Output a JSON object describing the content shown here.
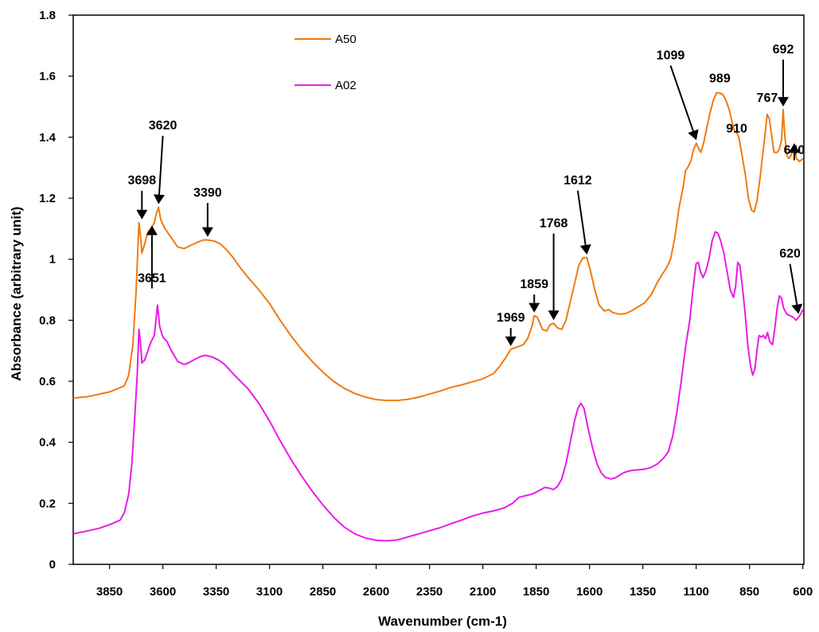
{
  "chart_data": {
    "type": "line",
    "xlabel": "Wavenumber (cm-1)",
    "ylabel": "Absorbance (arbitrary unit)",
    "xlim": [
      4020,
      595
    ],
    "ylim": [
      0,
      1.8
    ],
    "x_reversed": true,
    "grid": false,
    "legend_position": "top-left",
    "x_ticks": [
      3850,
      3600,
      3350,
      3100,
      2850,
      2600,
      2350,
      2100,
      1850,
      1600,
      1350,
      1100,
      850,
      600
    ],
    "y_ticks": [
      0,
      0.2,
      0.4,
      0.6,
      0.8,
      1,
      1.2,
      1.4,
      1.6,
      1.8
    ],
    "y_tick_labels": [
      "0",
      "0.2",
      "0.4",
      "0.6",
      "0.8",
      "1",
      "1.2",
      "1.4",
      "1.6",
      "1.8"
    ],
    "series": [
      {
        "name": "A50",
        "color": "#F07A10",
        "points": [
          [
            4020,
            0.545
          ],
          [
            3950,
            0.55
          ],
          [
            3850,
            0.565
          ],
          [
            3780,
            0.585
          ],
          [
            3760,
            0.62
          ],
          [
            3740,
            0.72
          ],
          [
            3725,
            0.9
          ],
          [
            3712,
            1.12
          ],
          [
            3705,
            1.08
          ],
          [
            3698,
            1.02
          ],
          [
            3685,
            1.05
          ],
          [
            3670,
            1.09
          ],
          [
            3655,
            1.1
          ],
          [
            3640,
            1.12
          ],
          [
            3630,
            1.15
          ],
          [
            3620,
            1.17
          ],
          [
            3610,
            1.13
          ],
          [
            3590,
            1.1
          ],
          [
            3560,
            1.07
          ],
          [
            3530,
            1.04
          ],
          [
            3500,
            1.035
          ],
          [
            3470,
            1.045
          ],
          [
            3440,
            1.055
          ],
          [
            3410,
            1.063
          ],
          [
            3390,
            1.063
          ],
          [
            3360,
            1.06
          ],
          [
            3330,
            1.05
          ],
          [
            3300,
            1.03
          ],
          [
            3270,
            1.005
          ],
          [
            3240,
            0.975
          ],
          [
            3200,
            0.94
          ],
          [
            3150,
            0.9
          ],
          [
            3100,
            0.855
          ],
          [
            3050,
            0.8
          ],
          [
            3000,
            0.75
          ],
          [
            2950,
            0.705
          ],
          [
            2900,
            0.665
          ],
          [
            2850,
            0.63
          ],
          [
            2800,
            0.6
          ],
          [
            2750,
            0.577
          ],
          [
            2700,
            0.56
          ],
          [
            2650,
            0.548
          ],
          [
            2600,
            0.54
          ],
          [
            2550,
            0.537
          ],
          [
            2500,
            0.537
          ],
          [
            2450,
            0.541
          ],
          [
            2400,
            0.548
          ],
          [
            2350,
            0.558
          ],
          [
            2300,
            0.568
          ],
          [
            2250,
            0.58
          ],
          [
            2200,
            0.588
          ],
          [
            2150,
            0.598
          ],
          [
            2100,
            0.608
          ],
          [
            2050,
            0.625
          ],
          [
            2020,
            0.65
          ],
          [
            1990,
            0.68
          ],
          [
            1969,
            0.705
          ],
          [
            1940,
            0.712
          ],
          [
            1910,
            0.72
          ],
          [
            1890,
            0.74
          ],
          [
            1870,
            0.78
          ],
          [
            1859,
            0.815
          ],
          [
            1845,
            0.81
          ],
          [
            1820,
            0.77
          ],
          [
            1800,
            0.765
          ],
          [
            1785,
            0.785
          ],
          [
            1768,
            0.79
          ],
          [
            1750,
            0.775
          ],
          [
            1730,
            0.77
          ],
          [
            1710,
            0.8
          ],
          [
            1690,
            0.86
          ],
          [
            1670,
            0.92
          ],
          [
            1650,
            0.98
          ],
          [
            1630,
            1.005
          ],
          [
            1612,
            1.005
          ],
          [
            1595,
            0.96
          ],
          [
            1575,
            0.9
          ],
          [
            1555,
            0.85
          ],
          [
            1530,
            0.83
          ],
          [
            1510,
            0.835
          ],
          [
            1490,
            0.825
          ],
          [
            1460,
            0.82
          ],
          [
            1430,
            0.822
          ],
          [
            1400,
            0.832
          ],
          [
            1370,
            0.845
          ],
          [
            1340,
            0.858
          ],
          [
            1310,
            0.885
          ],
          [
            1285,
            0.92
          ],
          [
            1260,
            0.95
          ],
          [
            1240,
            0.97
          ],
          [
            1220,
            1.0
          ],
          [
            1200,
            1.07
          ],
          [
            1180,
            1.17
          ],
          [
            1160,
            1.24
          ],
          [
            1150,
            1.29
          ],
          [
            1140,
            1.3
          ],
          [
            1125,
            1.32
          ],
          [
            1112,
            1.36
          ],
          [
            1099,
            1.38
          ],
          [
            1090,
            1.365
          ],
          [
            1078,
            1.35
          ],
          [
            1065,
            1.38
          ],
          [
            1050,
            1.43
          ],
          [
            1035,
            1.48
          ],
          [
            1020,
            1.52
          ],
          [
            1005,
            1.545
          ],
          [
            989,
            1.545
          ],
          [
            975,
            1.54
          ],
          [
            960,
            1.52
          ],
          [
            945,
            1.49
          ],
          [
            930,
            1.445
          ],
          [
            920,
            1.42
          ],
          [
            910,
            1.415
          ],
          [
            900,
            1.4
          ],
          [
            885,
            1.34
          ],
          [
            870,
            1.28
          ],
          [
            855,
            1.2
          ],
          [
            840,
            1.16
          ],
          [
            828,
            1.155
          ],
          [
            815,
            1.19
          ],
          [
            800,
            1.27
          ],
          [
            790,
            1.33
          ],
          [
            780,
            1.39
          ],
          [
            767,
            1.475
          ],
          [
            757,
            1.46
          ],
          [
            745,
            1.4
          ],
          [
            735,
            1.35
          ],
          [
            720,
            1.35
          ],
          [
            710,
            1.36
          ],
          [
            700,
            1.39
          ],
          [
            692,
            1.49
          ],
          [
            685,
            1.41
          ],
          [
            675,
            1.34
          ],
          [
            665,
            1.33
          ],
          [
            655,
            1.34
          ],
          [
            645,
            1.36
          ],
          [
            640,
            1.37
          ],
          [
            630,
            1.33
          ],
          [
            615,
            1.32
          ],
          [
            600,
            1.33
          ]
        ]
      },
      {
        "name": "A02",
        "color": "#E81CE8",
        "points": [
          [
            4020,
            0.1
          ],
          [
            3950,
            0.11
          ],
          [
            3900,
            0.118
          ],
          [
            3850,
            0.13
          ],
          [
            3800,
            0.145
          ],
          [
            3780,
            0.17
          ],
          [
            3760,
            0.23
          ],
          [
            3745,
            0.33
          ],
          [
            3730,
            0.5
          ],
          [
            3720,
            0.62
          ],
          [
            3712,
            0.77
          ],
          [
            3705,
            0.73
          ],
          [
            3698,
            0.66
          ],
          [
            3685,
            0.67
          ],
          [
            3670,
            0.7
          ],
          [
            3655,
            0.73
          ],
          [
            3640,
            0.75
          ],
          [
            3625,
            0.85
          ],
          [
            3615,
            0.78
          ],
          [
            3600,
            0.745
          ],
          [
            3580,
            0.73
          ],
          [
            3560,
            0.7
          ],
          [
            3530,
            0.665
          ],
          [
            3500,
            0.655
          ],
          [
            3480,
            0.66
          ],
          [
            3450,
            0.672
          ],
          [
            3420,
            0.682
          ],
          [
            3400,
            0.685
          ],
          [
            3370,
            0.68
          ],
          [
            3340,
            0.67
          ],
          [
            3310,
            0.655
          ],
          [
            3280,
            0.632
          ],
          [
            3250,
            0.61
          ],
          [
            3200,
            0.575
          ],
          [
            3150,
            0.528
          ],
          [
            3100,
            0.47
          ],
          [
            3050,
            0.405
          ],
          [
            3000,
            0.345
          ],
          [
            2950,
            0.29
          ],
          [
            2900,
            0.24
          ],
          [
            2850,
            0.195
          ],
          [
            2800,
            0.155
          ],
          [
            2750,
            0.122
          ],
          [
            2700,
            0.1
          ],
          [
            2650,
            0.086
          ],
          [
            2600,
            0.079
          ],
          [
            2550,
            0.077
          ],
          [
            2500,
            0.08
          ],
          [
            2450,
            0.09
          ],
          [
            2400,
            0.1
          ],
          [
            2350,
            0.11
          ],
          [
            2300,
            0.12
          ],
          [
            2250,
            0.133
          ],
          [
            2200,
            0.145
          ],
          [
            2150,
            0.158
          ],
          [
            2100,
            0.168
          ],
          [
            2050,
            0.175
          ],
          [
            2000,
            0.185
          ],
          [
            1960,
            0.2
          ],
          [
            1930,
            0.22
          ],
          [
            1900,
            0.225
          ],
          [
            1870,
            0.23
          ],
          [
            1840,
            0.24
          ],
          [
            1810,
            0.252
          ],
          [
            1790,
            0.25
          ],
          [
            1770,
            0.245
          ],
          [
            1750,
            0.255
          ],
          [
            1730,
            0.28
          ],
          [
            1710,
            0.33
          ],
          [
            1690,
            0.4
          ],
          [
            1670,
            0.47
          ],
          [
            1655,
            0.51
          ],
          [
            1640,
            0.528
          ],
          [
            1625,
            0.51
          ],
          [
            1605,
            0.44
          ],
          [
            1585,
            0.38
          ],
          [
            1565,
            0.33
          ],
          [
            1545,
            0.3
          ],
          [
            1525,
            0.285
          ],
          [
            1500,
            0.28
          ],
          [
            1480,
            0.283
          ],
          [
            1460,
            0.292
          ],
          [
            1440,
            0.3
          ],
          [
            1420,
            0.305
          ],
          [
            1400,
            0.308
          ],
          [
            1370,
            0.31
          ],
          [
            1340,
            0.312
          ],
          [
            1310,
            0.318
          ],
          [
            1280,
            0.33
          ],
          [
            1250,
            0.35
          ],
          [
            1230,
            0.37
          ],
          [
            1210,
            0.42
          ],
          [
            1190,
            0.5
          ],
          [
            1170,
            0.6
          ],
          [
            1150,
            0.71
          ],
          [
            1130,
            0.8
          ],
          [
            1115,
            0.9
          ],
          [
            1100,
            0.985
          ],
          [
            1090,
            0.99
          ],
          [
            1080,
            0.96
          ],
          [
            1068,
            0.94
          ],
          [
            1055,
            0.96
          ],
          [
            1040,
            1.0
          ],
          [
            1025,
            1.06
          ],
          [
            1010,
            1.09
          ],
          [
            998,
            1.085
          ],
          [
            985,
            1.06
          ],
          [
            970,
            1.02
          ],
          [
            955,
            0.96
          ],
          [
            940,
            0.9
          ],
          [
            925,
            0.875
          ],
          [
            915,
            0.91
          ],
          [
            905,
            0.99
          ],
          [
            895,
            0.98
          ],
          [
            885,
            0.92
          ],
          [
            870,
            0.82
          ],
          [
            858,
            0.72
          ],
          [
            845,
            0.65
          ],
          [
            835,
            0.62
          ],
          [
            825,
            0.64
          ],
          [
            815,
            0.7
          ],
          [
            805,
            0.75
          ],
          [
            795,
            0.745
          ],
          [
            785,
            0.75
          ],
          [
            775,
            0.74
          ],
          [
            765,
            0.76
          ],
          [
            755,
            0.73
          ],
          [
            742,
            0.72
          ],
          [
            730,
            0.78
          ],
          [
            720,
            0.84
          ],
          [
            710,
            0.88
          ],
          [
            700,
            0.872
          ],
          [
            690,
            0.84
          ],
          [
            675,
            0.82
          ],
          [
            660,
            0.815
          ],
          [
            645,
            0.81
          ],
          [
            632,
            0.8
          ],
          [
            620,
            0.81
          ],
          [
            610,
            0.82
          ],
          [
            600,
            0.835
          ]
        ]
      }
    ],
    "annotations": [
      {
        "label": "3698",
        "x": 3698,
        "y": 1.12,
        "text_x": 3698,
        "text_y": 1.24
      },
      {
        "label": "3620",
        "x": 3620,
        "y": 1.17,
        "text_x": 3600,
        "text_y": 1.42
      },
      {
        "label": "3390",
        "x": 3390,
        "y": 1.063,
        "text_x": 3390,
        "text_y": 1.2
      },
      {
        "label": "3651",
        "x": 3651,
        "y": 1.1,
        "text_x": 3651,
        "text_y": 0.92
      },
      {
        "label": "1969",
        "x": 1969,
        "y": 0.705,
        "text_x": 1969,
        "text_y": 0.79
      },
      {
        "label": "1859",
        "x": 1859,
        "y": 0.815,
        "text_x": 1859,
        "text_y": 0.9
      },
      {
        "label": "1768",
        "x": 1768,
        "y": 0.79,
        "text_x": 1768,
        "text_y": 1.1
      },
      {
        "label": "1612",
        "x": 1612,
        "y": 1.005,
        "text_x": 1655,
        "text_y": 1.24
      },
      {
        "label": "1099",
        "x": 1099,
        "y": 1.38,
        "text_x": 1220,
        "text_y": 1.65
      },
      {
        "label": "989",
        "x": 989,
        "y": 1.545,
        "text_x": 989,
        "text_y": 1.575
      },
      {
        "label": "910",
        "x": 910,
        "y": 1.415,
        "text_x": 910,
        "text_y": 1.41
      },
      {
        "label": "767",
        "x": 767,
        "y": 1.475,
        "text_x": 767,
        "text_y": 1.51
      },
      {
        "label": "692",
        "x": 692,
        "y": 1.49,
        "text_x": 692,
        "text_y": 1.67
      },
      {
        "label": "640",
        "x": 640,
        "y": 1.37,
        "text_x": 640,
        "text_y": 1.34
      },
      {
        "label": "620",
        "x": 620,
        "y": 0.81,
        "text_x": 660,
        "text_y": 1.0
      }
    ]
  }
}
